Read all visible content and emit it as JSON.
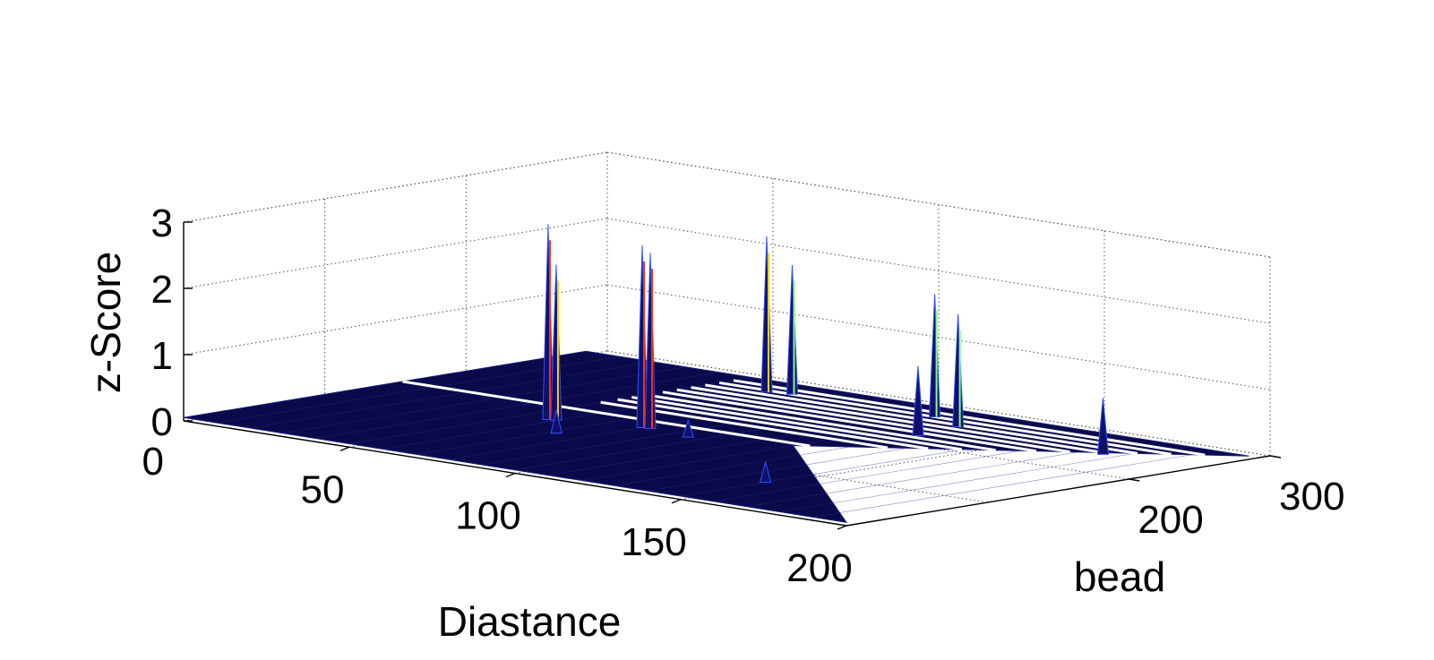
{
  "chart_data": {
    "type": "surface3d",
    "title": "",
    "xlabel": "Diastance",
    "ylabel": "bead",
    "zlabel": "z-Score",
    "xlim": [
      0,
      200
    ],
    "ylim": [
      0,
      300
    ],
    "zlim": [
      0,
      3
    ],
    "x_ticks": [
      "50",
      "100",
      "150",
      "200"
    ],
    "y_ticks": [
      "200",
      "300"
    ],
    "z_ticks": [
      "0",
      "1",
      "2",
      "3"
    ],
    "origin_label": "0",
    "grid": true,
    "colormap": "jet",
    "surface_fill": "#0a0a4a",
    "baseline_z": 0.05,
    "surface_domain": "triangular",
    "white_gap_rows_bead": [
      155,
      178,
      190,
      200,
      210,
      222,
      232,
      242,
      252,
      262,
      272
    ],
    "peaks": [
      {
        "x": 58,
        "y": 122,
        "z": 3.0
      },
      {
        "x": 60,
        "y": 123,
        "z": 2.4
      },
      {
        "x": 80,
        "y": 137,
        "z": 2.8
      },
      {
        "x": 82,
        "y": 138,
        "z": 2.7
      },
      {
        "x": 66,
        "y": 258,
        "z": 2.4
      },
      {
        "x": 72,
        "y": 262,
        "z": 2.0
      },
      {
        "x": 115,
        "y": 262,
        "z": 1.9
      },
      {
        "x": 128,
        "y": 248,
        "z": 1.75
      },
      {
        "x": 130,
        "y": 215,
        "z": 1.1
      },
      {
        "x": 176,
        "y": 238,
        "z": 0.9
      },
      {
        "x": 150,
        "y": 60,
        "z": 0.35
      },
      {
        "x": 72,
        "y": 95,
        "z": 0.4
      },
      {
        "x": 96,
        "y": 132,
        "z": 0.3
      }
    ]
  }
}
